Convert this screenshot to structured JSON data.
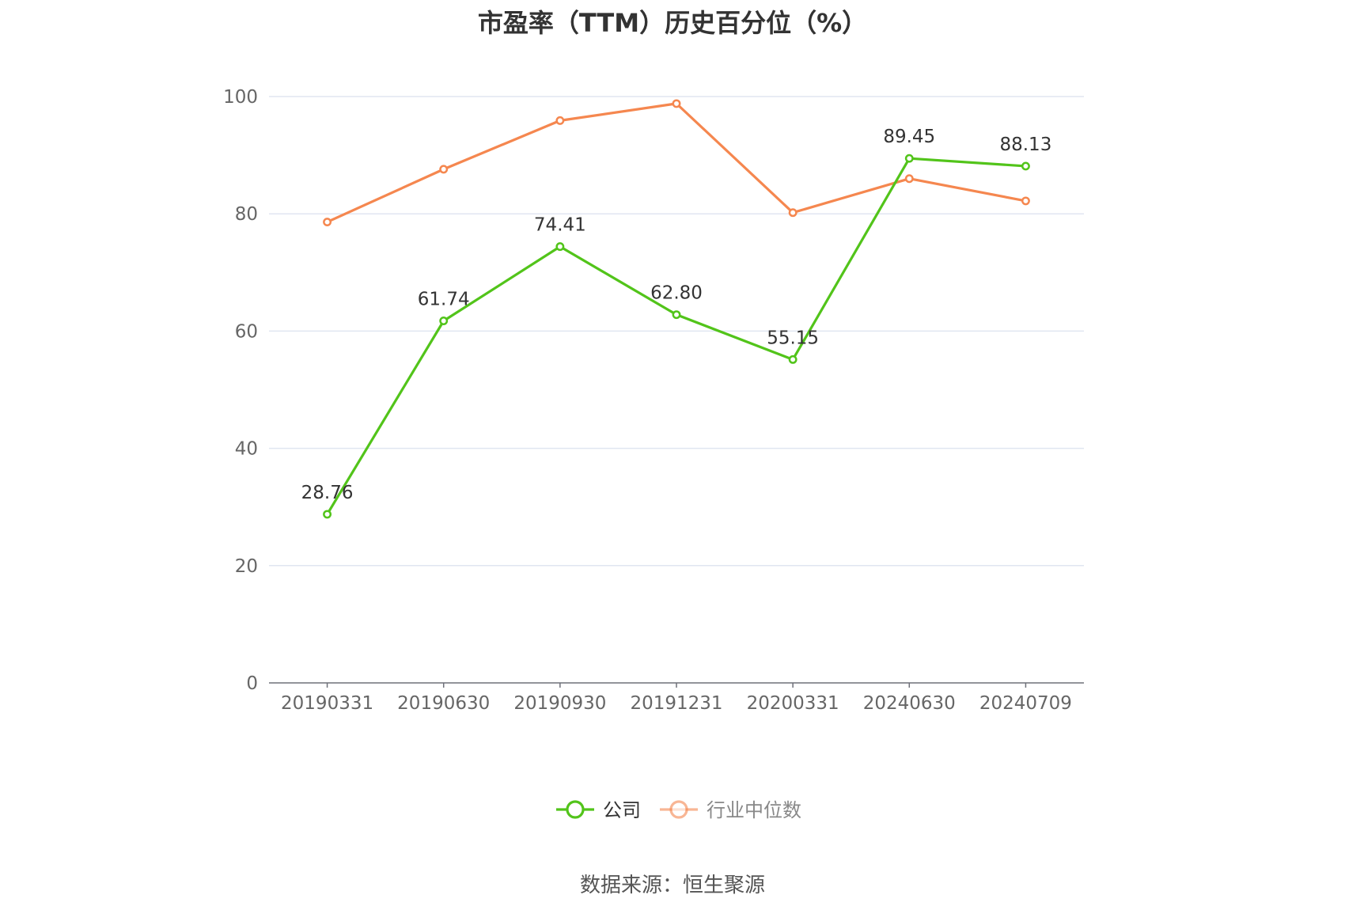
{
  "chart_data": {
    "type": "line",
    "title": "市盈率（TTM）历史百分位（%）",
    "categories": [
      "20190331",
      "20190630",
      "20190930",
      "20191231",
      "20200331",
      "20240630",
      "20240709"
    ],
    "series": [
      {
        "name": "公司",
        "color": "#52c41a",
        "values": [
          28.76,
          61.74,
          74.41,
          62.8,
          55.15,
          89.45,
          88.13
        ],
        "labels": [
          "28.76",
          "61.74",
          "74.41",
          "62.80",
          "55.15",
          "89.45",
          "88.13"
        ]
      },
      {
        "name": "行业中位数",
        "color": "#f5874f",
        "values": [
          78.6,
          87.6,
          95.9,
          98.8,
          80.2,
          86.0,
          82.2
        ]
      }
    ],
    "ylim": [
      0,
      100
    ],
    "yticks": [
      "0",
      "20",
      "40",
      "60",
      "80",
      "100"
    ],
    "grid": true,
    "legend_position": "bottom-center"
  },
  "source": "数据来源：恒生聚源"
}
